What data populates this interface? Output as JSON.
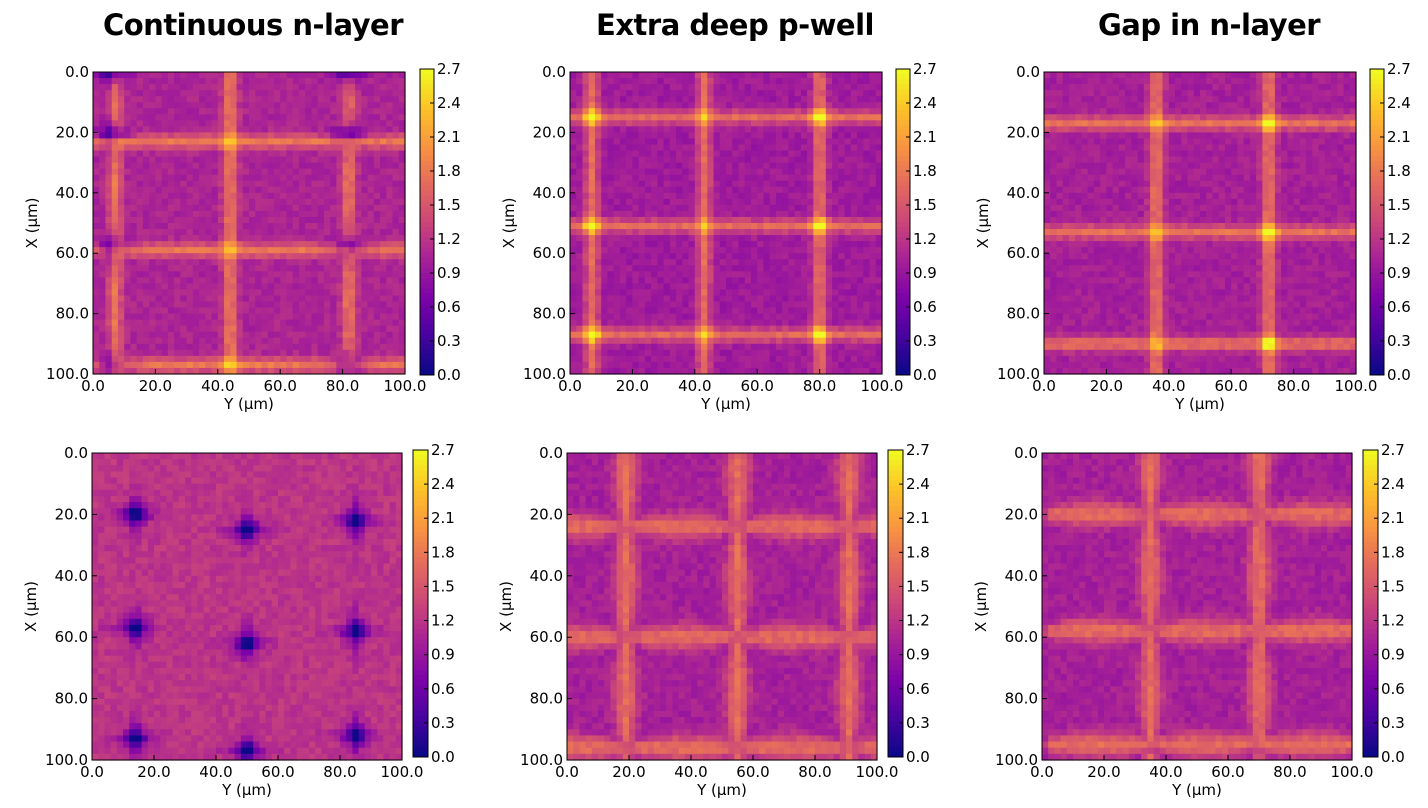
{
  "column_titles": [
    "Continuous n-layer",
    "Extra deep p-well",
    "Gap in n-layer"
  ],
  "chart_data": [
    {
      "type": "heatmap",
      "title": "Continuous n-layer",
      "row": "top",
      "xlabel": "Y (µm)",
      "ylabel": "X (µm)",
      "x_ticks": [
        "0.0",
        "20.0",
        "40.0",
        "60.0",
        "80.0",
        "100.0"
      ],
      "y_ticks": [
        "0.0",
        "20.0",
        "40.0",
        "60.0",
        "80.0",
        "100.0"
      ],
      "xlim": [
        0,
        100
      ],
      "ylim": [
        0,
        100
      ],
      "colorbar": {
        "min": 0.0,
        "max": 2.7,
        "ticks": [
          "0.0",
          "0.3",
          "0.6",
          "0.9",
          "1.2",
          "1.5",
          "1.8",
          "2.1",
          "2.4",
          "2.7"
        ],
        "colormap": "plasma"
      },
      "pattern": {
        "background": 1.05,
        "low_spots": [
          [
            6,
            0
          ],
          [
            6,
            21
          ],
          [
            6,
            58
          ],
          [
            6,
            97
          ],
          [
            82,
            0
          ],
          [
            82,
            21
          ],
          [
            82,
            58
          ],
          [
            82,
            97
          ]
        ],
        "bright_lines_x": [
          23,
          59,
          97
        ],
        "bright_lines_y": [
          7,
          44,
          82
        ]
      }
    },
    {
      "type": "heatmap",
      "title": "Extra deep p-well",
      "row": "top",
      "xlabel": "Y (µm)",
      "ylabel": "X (µm)",
      "x_ticks": [
        "0.0",
        "20.0",
        "40.0",
        "60.0",
        "80.0",
        "100.0"
      ],
      "y_ticks": [
        "0.0",
        "20.0",
        "40.0",
        "60.0",
        "80.0",
        "100.0"
      ],
      "xlim": [
        0,
        100
      ],
      "ylim": [
        0,
        100
      ],
      "colorbar": {
        "min": 0.0,
        "max": 2.7,
        "ticks": [
          "0.0",
          "0.3",
          "0.6",
          "0.9",
          "1.2",
          "1.5",
          "1.8",
          "2.1",
          "2.4",
          "2.7"
        ],
        "colormap": "plasma"
      },
      "pattern": {
        "background": 0.95,
        "bright_lines_x": [
          15,
          51,
          87
        ],
        "bright_lines_y": [
          7,
          43,
          80
        ],
        "hot_spots": [
          [
            7,
            15
          ],
          [
            80,
            15
          ],
          [
            7,
            51
          ],
          [
            80,
            51
          ],
          [
            7,
            87
          ],
          [
            80,
            87
          ]
        ]
      }
    },
    {
      "type": "heatmap",
      "title": "Gap in n-layer",
      "row": "top",
      "xlabel": "Y (µm)",
      "ylabel": "X (µm)",
      "x_ticks": [
        "0.0",
        "20.0",
        "40.0",
        "60.0",
        "80.0",
        "100.0"
      ],
      "y_ticks": [
        "0.0",
        "20.0",
        "40.0",
        "60.0",
        "80.0",
        "100.0"
      ],
      "xlim": [
        0,
        100
      ],
      "ylim": [
        0,
        100
      ],
      "colorbar": {
        "min": 0.0,
        "max": 2.7,
        "ticks": [
          "0.0",
          "0.3",
          "0.6",
          "0.9",
          "1.2",
          "1.5",
          "1.8",
          "2.1",
          "2.4",
          "2.7"
        ],
        "colormap": "plasma"
      },
      "pattern": {
        "background": 1.0,
        "bright_lines_x": [
          17,
          53,
          90
        ],
        "bright_lines_y": [
          36,
          72
        ],
        "hot_spots": [
          [
            72,
            17
          ],
          [
            72,
            53
          ],
          [
            72,
            90
          ]
        ]
      }
    },
    {
      "type": "heatmap",
      "row": "bottom",
      "xlabel": "Y (µm)",
      "ylabel": "X (µm)",
      "x_ticks": [
        "0.0",
        "20.0",
        "40.0",
        "60.0",
        "80.0",
        "100.0"
      ],
      "y_ticks": [
        "0.0",
        "20.0",
        "40.0",
        "60.0",
        "80.0",
        "100.0"
      ],
      "xlim": [
        0,
        100
      ],
      "ylim": [
        0,
        100
      ],
      "colorbar": {
        "min": 0.0,
        "max": 2.7,
        "ticks": [
          "0.0",
          "0.3",
          "0.6",
          "0.9",
          "1.2",
          "1.5",
          "1.8",
          "2.1",
          "2.4",
          "2.7"
        ],
        "colormap": "plasma"
      },
      "pattern": {
        "background": 1.2,
        "low_spots": [
          [
            14,
            20
          ],
          [
            50,
            25
          ],
          [
            85,
            22
          ],
          [
            14,
            57
          ],
          [
            50,
            62
          ],
          [
            85,
            58
          ],
          [
            14,
            93
          ],
          [
            50,
            97
          ],
          [
            85,
            92
          ]
        ]
      }
    },
    {
      "type": "heatmap",
      "row": "bottom",
      "xlabel": "Y (µm)",
      "ylabel": "X (µm)",
      "x_ticks": [
        "0.0",
        "20.0",
        "40.0",
        "60.0",
        "80.0",
        "100.0"
      ],
      "y_ticks": [
        "0.0",
        "20.0",
        "40.0",
        "60.0",
        "80.0",
        "100.0"
      ],
      "xlim": [
        0,
        100
      ],
      "ylim": [
        0,
        100
      ],
      "colorbar": {
        "min": 0.0,
        "max": 2.7,
        "ticks": [
          "0.0",
          "0.3",
          "0.6",
          "0.9",
          "1.2",
          "1.5",
          "1.8",
          "2.1",
          "2.4",
          "2.7"
        ],
        "colormap": "plasma"
      },
      "pattern": {
        "background": 1.0,
        "lens_h_rows": [
          24,
          60,
          96
        ],
        "lens_v_cols": [
          19,
          55,
          91
        ]
      }
    },
    {
      "type": "heatmap",
      "row": "bottom",
      "xlabel": "Y (µm)",
      "ylabel": "X (µm)",
      "x_ticks": [
        "0.0",
        "20.0",
        "40.0",
        "60.0",
        "80.0",
        "100.0"
      ],
      "y_ticks": [
        "0.0",
        "20.0",
        "40.0",
        "60.0",
        "80.0",
        "100.0"
      ],
      "xlim": [
        0,
        100
      ],
      "ylim": [
        0,
        100
      ],
      "colorbar": {
        "min": 0.0,
        "max": 2.7,
        "ticks": [
          "0.0",
          "0.3",
          "0.6",
          "0.9",
          "1.2",
          "1.5",
          "1.8",
          "2.1",
          "2.4",
          "2.7"
        ],
        "colormap": "plasma"
      },
      "pattern": {
        "background": 1.0,
        "lens_h_rows": [
          20,
          58,
          95
        ],
        "lens_v_cols": [
          35,
          70
        ]
      }
    }
  ]
}
